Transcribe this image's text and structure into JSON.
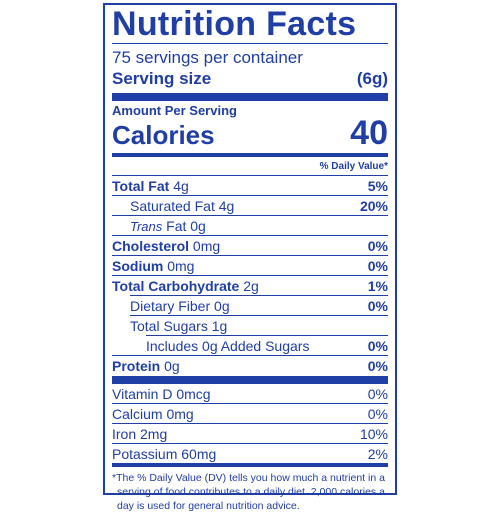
{
  "title": "Nutrition Facts",
  "servings": "75 servings per container",
  "serving_size": {
    "label": "Serving size",
    "value": "(6g)"
  },
  "amount_per_serving": "Amount Per Serving",
  "calories": {
    "label": "Calories",
    "value": 40
  },
  "daily_value_header": "% Daily Value*",
  "nutrients": [
    {
      "name": "Total Fat",
      "amount": "4g",
      "dv": "5%"
    },
    {
      "name": "Saturated Fat",
      "amount": "4g",
      "dv": "20%"
    },
    {
      "name": "Trans",
      "amount": "Fat 0g"
    },
    {
      "name": "Cholesterol",
      "amount": "0mg",
      "dv": "0%"
    },
    {
      "name": "Sodium",
      "amount": "0mg",
      "dv": "0%"
    },
    {
      "name": "Total Carbohydrate",
      "amount": "2g",
      "dv": "1%"
    },
    {
      "name": "Dietary Fiber",
      "amount": "0g",
      "dv": "0%"
    },
    {
      "name": "Total Sugars",
      "amount": "1g"
    },
    {
      "name": "Includes 0g Added Sugars",
      "dv": "0%"
    },
    {
      "name": "Protein",
      "amount": "0g",
      "dv": "0%"
    }
  ],
  "vitamins": [
    {
      "name": "Vitamin D",
      "amount": "0mcg",
      "dv": "0%"
    },
    {
      "name": "Calcium",
      "amount": "0mg",
      "dv": "0%"
    },
    {
      "name": "Iron",
      "amount": "2mg",
      "dv": "10%"
    },
    {
      "name": "Potassium",
      "amount": "60mg",
      "dv": "2%"
    }
  ],
  "footnote": [
    "*The % Daily Value (DV) tells you how much a nutrient in a",
    "serving of food contributes to a daily diet. 2,000 calories a",
    "day is used for general nutrition advice."
  ]
}
